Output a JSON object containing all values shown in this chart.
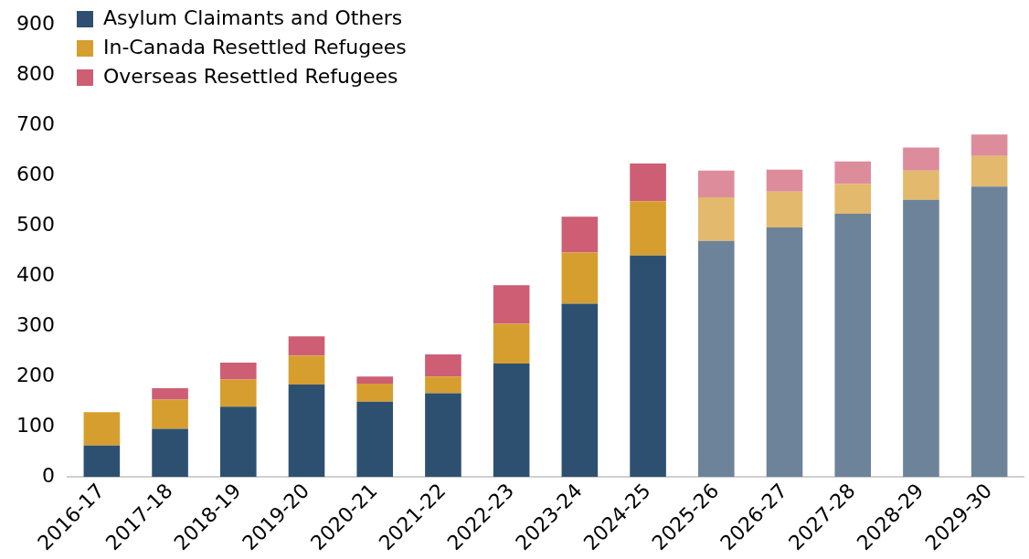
{
  "chart_data": {
    "type": "bar",
    "stacked": true,
    "categories": [
      "2016-17",
      "2017-18",
      "2018-19",
      "2019-20",
      "2020-21",
      "2021-22",
      "2022-23",
      "2023-24",
      "2024-25",
      "2025-26",
      "2026-27",
      "2027-28",
      "2028-29",
      "2029-30"
    ],
    "series": [
      {
        "name": "Asylum Claimants and Others",
        "color": "#2e5070",
        "colors": [
          "#2e5070",
          "#2e5070",
          "#2e5070",
          "#2e5070",
          "#2e5070",
          "#2e5070",
          "#2e5070",
          "#2e5070",
          "#2e5070",
          "#6d8399",
          "#6d8399",
          "#6d8399",
          "#6d8399",
          "#6d8399"
        ],
        "values": [
          63,
          96,
          140,
          184,
          150,
          167,
          226,
          345,
          441,
          470,
          497,
          524,
          552,
          578
        ]
      },
      {
        "name": "In-Canada Resettled Refugees",
        "color": "#d69e2e",
        "colors": [
          "#d69e2e",
          "#d69e2e",
          "#d69e2e",
          "#d69e2e",
          "#d69e2e",
          "#d69e2e",
          "#d69e2e",
          "#d69e2e",
          "#d69e2e",
          "#e3b96d",
          "#e3b96d",
          "#e3b96d",
          "#e3b96d",
          "#e3b96d"
        ],
        "values": [
          66,
          58,
          54,
          58,
          36,
          33,
          79,
          102,
          108,
          87,
          71,
          59,
          58,
          61
        ]
      },
      {
        "name": "Overseas Resettled Refugees",
        "color": "#cd5e74",
        "colors": [
          "#cd5e74",
          "#cd5e74",
          "#cd5e74",
          "#cd5e74",
          "#cd5e74",
          "#cd5e74",
          "#cd5e74",
          "#cd5e74",
          "#cd5e74",
          "#dd8c9c",
          "#dd8c9c",
          "#dd8c9c",
          "#dd8c9c",
          "#dd8c9c"
        ],
        "values": [
          null,
          23,
          34,
          38,
          14,
          44,
          77,
          71,
          75,
          53,
          44,
          45,
          46,
          43
        ]
      }
    ],
    "ylim": [
      0,
      900
    ],
    "yticks": [
      0,
      100,
      200,
      300,
      400,
      500,
      600,
      700,
      800,
      900
    ],
    "grid": false,
    "legend": "top left"
  }
}
